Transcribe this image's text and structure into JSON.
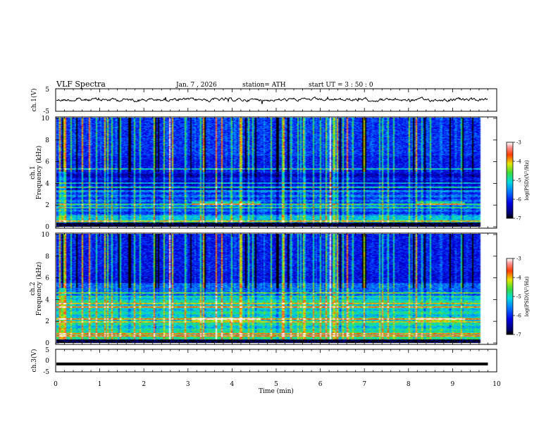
{
  "header": {
    "title": "VLF  Spectra",
    "date": "Jan.  7  , 2026",
    "station": "station= ATH",
    "start": "start  UT  =   3  : 50 : 0"
  },
  "chart_data": [
    {
      "type": "line",
      "ylabel": "ch.1(V)",
      "ylim": [
        -5,
        5
      ],
      "yticks": [
        "5",
        "-5"
      ],
      "xlim": [
        0,
        10
      ],
      "description_level": 0.1
    },
    {
      "type": "heatmap",
      "ylabel_channel": "ch.1",
      "ylabel": "Frequency  (kHz)",
      "ylim": [
        0,
        10
      ],
      "yticks": [
        "0",
        "2",
        "4",
        "6",
        "8",
        "10"
      ],
      "colorbar": {
        "label": "log(PSD)(V²/Hz)",
        "range": [
          -7,
          -3
        ],
        "ticks": [
          "-3",
          "-4",
          "-5",
          "-6",
          "-7"
        ]
      }
    },
    {
      "type": "heatmap",
      "ylabel_channel": "ch.2",
      "ylabel": "Frequency  (kHz)",
      "ylim": [
        0,
        10
      ],
      "yticks": [
        "0",
        "2",
        "4",
        "6",
        "8",
        "10"
      ],
      "colorbar": {
        "label": "log(PSD)(V²/Hz)",
        "range": [
          -7,
          -3
        ],
        "ticks": [
          "-3",
          "-4",
          "-5",
          "-6",
          "-7"
        ]
      }
    },
    {
      "type": "line",
      "ylabel": "ch.3(V)",
      "ylim": [
        -5,
        5
      ],
      "yticks": [
        "5",
        "0",
        "-5"
      ],
      "level": -1.5
    }
  ],
  "xaxis": {
    "label": "Time  (min)",
    "range": [
      0,
      10
    ],
    "ticks": [
      "0",
      "1",
      "2",
      "3",
      "4",
      "5",
      "6",
      "7",
      "8",
      "9",
      "10"
    ],
    "data_end": 9.8
  }
}
